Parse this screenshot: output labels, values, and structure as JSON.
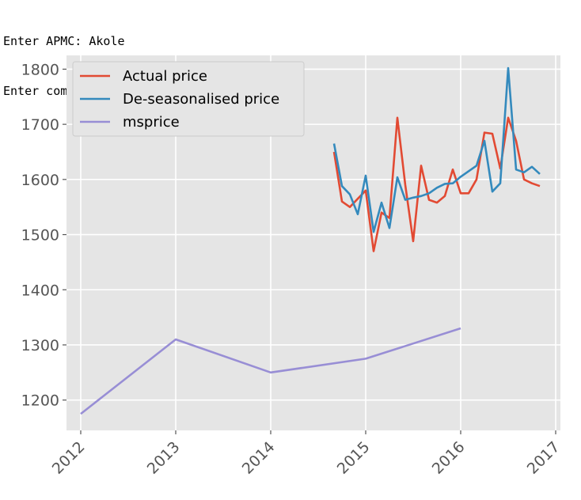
{
  "console": {
    "line1": "Enter APMC: Akole",
    "line2": "Enter commodity within the APMC bajri"
  },
  "chart_data": {
    "type": "line",
    "style": "ggplot",
    "grid": true,
    "legend_position": "top-left",
    "xlim": [
      2011.85,
      2017.05
    ],
    "ylim": [
      1145,
      1825
    ],
    "xticks": [
      2012,
      2013,
      2014,
      2015,
      2016,
      2017
    ],
    "yticks": [
      1200,
      1300,
      1400,
      1500,
      1600,
      1700,
      1800
    ],
    "xtick_labels": [
      "2012",
      "2013",
      "2014",
      "2015",
      "2016",
      "2017"
    ],
    "ytick_labels": [
      "1200",
      "1300",
      "1400",
      "1500",
      "1600",
      "1700",
      "1800"
    ],
    "series": [
      {
        "name": "Actual price",
        "color": "#e24a33",
        "x": [
          "2014-09-01",
          "2014-10-01",
          "2014-11-01",
          "2014-12-01",
          "2015-01-01",
          "2015-02-01",
          "2015-03-01",
          "2015-04-01",
          "2015-05-01",
          "2015-06-01",
          "2015-07-01",
          "2015-08-01",
          "2015-09-01",
          "2015-10-01",
          "2015-11-01",
          "2015-12-01",
          "2016-01-01",
          "2016-02-01",
          "2016-03-01",
          "2016-04-01",
          "2016-05-01",
          "2016-06-01",
          "2016-07-01",
          "2016-08-01",
          "2016-09-01",
          "2016-10-01",
          "2016-11-01"
        ],
        "y": [
          1650,
          1560,
          1550,
          1565,
          1580,
          1470,
          1540,
          1530,
          1712,
          1590,
          1488,
          1625,
          1563,
          1558,
          1570,
          1618,
          1575,
          1575,
          1600,
          1685,
          1683,
          1620,
          1712,
          1670,
          1600,
          1593,
          1588
        ]
      },
      {
        "name": "De-seasonalised price",
        "color": "#348abd",
        "x": [
          "2014-09-01",
          "2014-10-01",
          "2014-11-01",
          "2014-12-01",
          "2015-01-01",
          "2015-02-01",
          "2015-03-01",
          "2015-04-01",
          "2015-05-01",
          "2015-06-01",
          "2015-07-01",
          "2015-08-01",
          "2015-09-01",
          "2015-10-01",
          "2015-11-01",
          "2015-12-01",
          "2016-01-01",
          "2016-02-01",
          "2016-03-01",
          "2016-04-01",
          "2016-05-01",
          "2016-06-01",
          "2016-07-01",
          "2016-08-01",
          "2016-09-01",
          "2016-10-01",
          "2016-11-01"
        ],
        "y": [
          1665,
          1588,
          1573,
          1537,
          1607,
          1505,
          1558,
          1512,
          1604,
          1563,
          1567,
          1570,
          1575,
          1585,
          1592,
          1593,
          1605,
          1615,
          1625,
          1670,
          1578,
          1593,
          1802,
          1618,
          1613,
          1623,
          1610
        ]
      },
      {
        "name": "msprice",
        "color": "#988ed5",
        "x": [
          "2012-01-01",
          "2013-01-01",
          "2014-01-01",
          "2015-01-01",
          "2016-01-01"
        ],
        "y": [
          1175,
          1310,
          1250,
          1275,
          1330
        ]
      }
    ]
  }
}
